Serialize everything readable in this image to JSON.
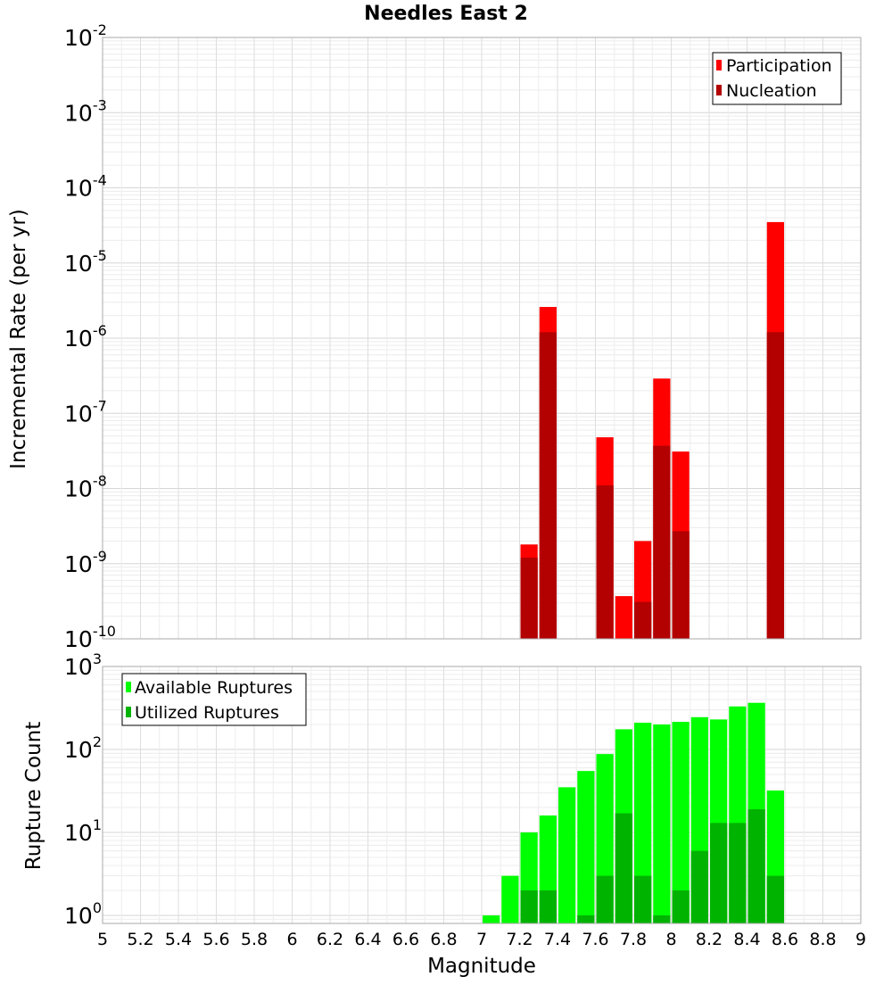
{
  "chart_data": [
    {
      "type": "bar",
      "title": "Needles East 2",
      "xlabel": "",
      "ylabel": "Incremental Rate (per yr)",
      "yscale": "log",
      "ylim": [
        1e-10,
        0.01
      ],
      "xlim": [
        5,
        9
      ],
      "bar_width": 0.1,
      "grid": true,
      "legend_position": "top-right",
      "y_tick_labels": [
        {
          "base": "10",
          "exp": "-2"
        },
        {
          "base": "10",
          "exp": "-3"
        },
        {
          "base": "10",
          "exp": "-4"
        },
        {
          "base": "10",
          "exp": "-5"
        },
        {
          "base": "10",
          "exp": "-6"
        },
        {
          "base": "10",
          "exp": "-7"
        },
        {
          "base": "10",
          "exp": "-8"
        },
        {
          "base": "10",
          "exp": "-9"
        },
        {
          "base": "10",
          "exp": "-10"
        }
      ],
      "series": [
        {
          "name": "Participation",
          "color": "#ff0000",
          "x": [
            7.25,
            7.35,
            7.65,
            7.75,
            7.85,
            7.95,
            8.05,
            8.55
          ],
          "values": [
            1.8e-09,
            2.6e-06,
            4.8e-08,
            3.7e-10,
            2e-09,
            2.9e-07,
            3.1e-08,
            3.5e-05
          ]
        },
        {
          "name": "Nucleation",
          "color": "#b30000",
          "x": [
            7.25,
            7.35,
            7.65,
            7.85,
            7.95,
            8.05,
            8.55
          ],
          "values": [
            1.2e-09,
            1.2e-06,
            1.1e-08,
            3.1e-10,
            3.7e-08,
            2.7e-09,
            1.2e-06
          ]
        }
      ]
    },
    {
      "type": "bar",
      "title": "",
      "xlabel": "Magnitude",
      "ylabel": "Rupture Count",
      "yscale": "log",
      "ylim": [
        0.8,
        1000
      ],
      "xlim": [
        5,
        9
      ],
      "bar_width": 0.1,
      "grid": true,
      "legend_position": "top-left",
      "x_tick_labels": [
        "5",
        "5.2",
        "5.4",
        "5.6",
        "5.8",
        "6",
        "6.2",
        "6.4",
        "6.6",
        "6.8",
        "7",
        "7.2",
        "7.4",
        "7.6",
        "7.8",
        "8",
        "8.2",
        "8.4",
        "8.6",
        "8.8",
        "9"
      ],
      "y_tick_labels": [
        {
          "base": "10",
          "exp": "3"
        },
        {
          "base": "10",
          "exp": "2"
        },
        {
          "base": "10",
          "exp": "1"
        },
        {
          "base": "10",
          "exp": "0"
        }
      ],
      "series": [
        {
          "name": "Available Ruptures",
          "color": "#00ff00",
          "x": [
            7.05,
            7.15,
            7.25,
            7.35,
            7.45,
            7.55,
            7.65,
            7.75,
            7.85,
            7.95,
            8.05,
            8.15,
            8.25,
            8.35,
            8.45,
            8.55
          ],
          "values": [
            1,
            3,
            10,
            16,
            35,
            55,
            88,
            175,
            210,
            200,
            215,
            245,
            230,
            330,
            365,
            32
          ]
        },
        {
          "name": "Utilized Ruptures",
          "color": "#00b300",
          "x": [
            7.25,
            7.35,
            7.55,
            7.65,
            7.75,
            7.85,
            7.95,
            8.05,
            8.15,
            8.25,
            8.35,
            8.45,
            8.55
          ],
          "values": [
            2,
            2,
            1,
            3,
            17,
            3,
            1,
            2,
            6,
            13,
            13,
            19,
            3
          ]
        }
      ]
    }
  ]
}
